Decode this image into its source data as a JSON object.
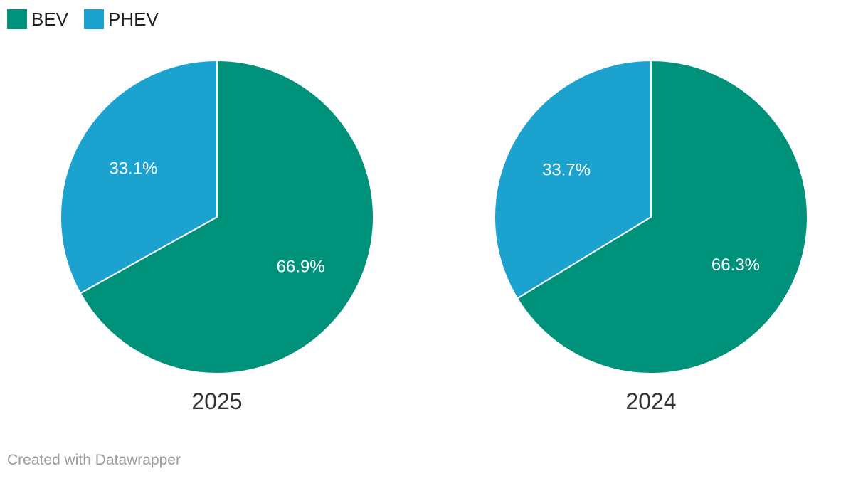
{
  "chart_data": {
    "type": "pie",
    "layout": "small-multiples",
    "legend_position": "top-left",
    "unit": "%",
    "legend": [
      {
        "label": "BEV",
        "color": "#00917a"
      },
      {
        "label": "PHEV",
        "color": "#1ca2cf"
      }
    ],
    "charts": [
      {
        "label": "2025",
        "slices": [
          {
            "name": "BEV",
            "value": 66.9,
            "display": "66.9%"
          },
          {
            "name": "PHEV",
            "value": 33.1,
            "display": "33.1%"
          }
        ]
      },
      {
        "label": "2024",
        "slices": [
          {
            "name": "BEV",
            "value": 66.3,
            "display": "66.3%"
          },
          {
            "name": "PHEV",
            "value": 33.7,
            "display": "33.7%"
          }
        ]
      }
    ]
  },
  "footer": {
    "attribution": "Created with Datawrapper"
  }
}
